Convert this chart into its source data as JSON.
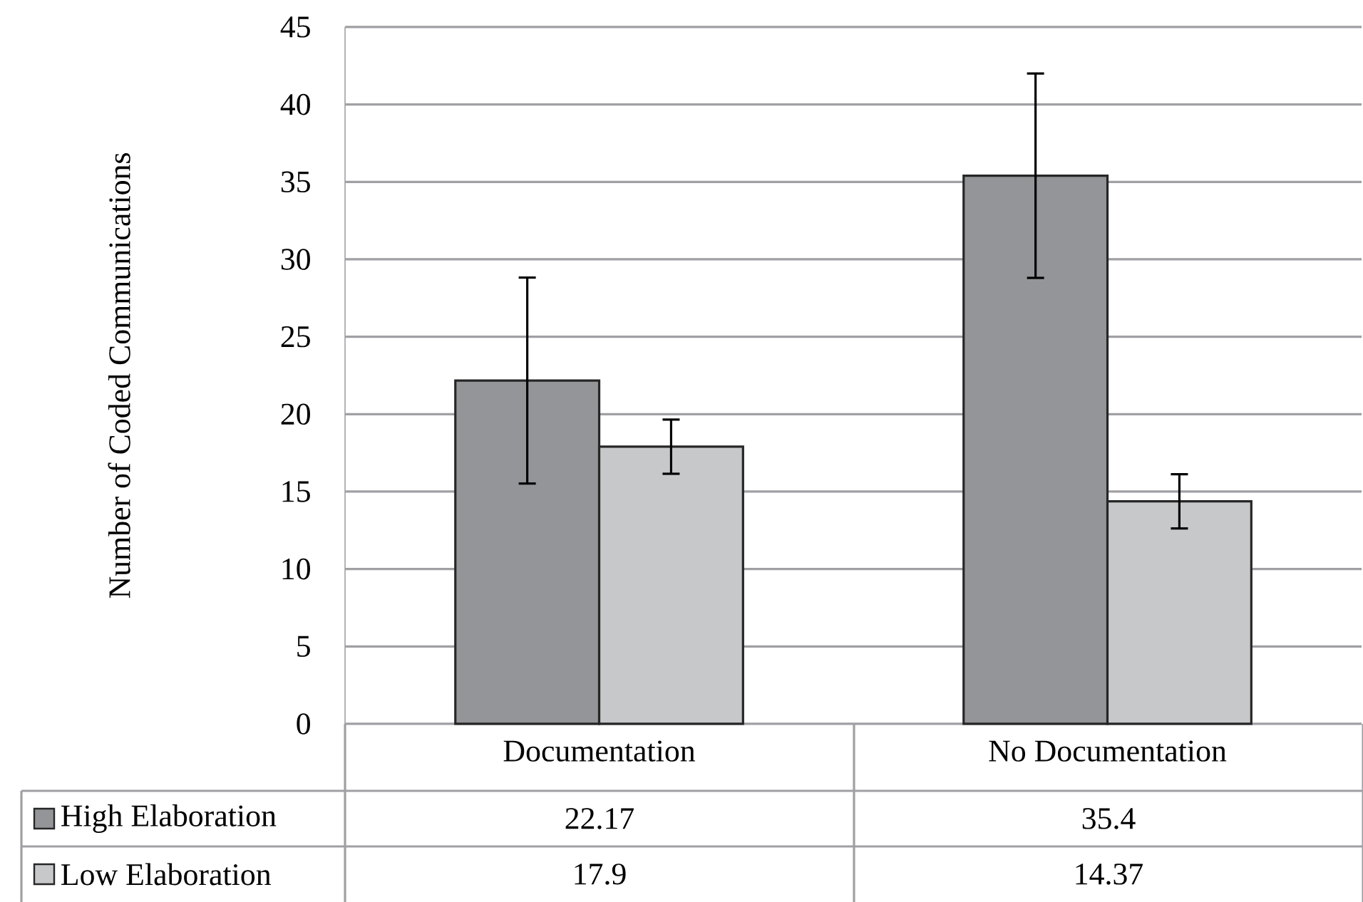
{
  "chart_data": {
    "type": "bar",
    "ylabel": "Number of Coded Communications",
    "categories": [
      "Documentation",
      "No Documentation"
    ],
    "series": [
      {
        "name": "High Elaboration",
        "color": "#939598",
        "values": [
          22.17,
          35.4
        ],
        "errors": [
          6.65,
          6.6
        ]
      },
      {
        "name": "Low Elaboration",
        "color": "#c7c8ca",
        "values": [
          17.9,
          14.37
        ],
        "errors": [
          1.75,
          1.75
        ]
      }
    ],
    "ylim": [
      0,
      45
    ],
    "yticks": [
      0,
      5,
      10,
      15,
      20,
      25,
      30,
      35,
      40,
      45
    ],
    "grid": "y",
    "legend": "bottom left",
    "data_labels": true
  }
}
